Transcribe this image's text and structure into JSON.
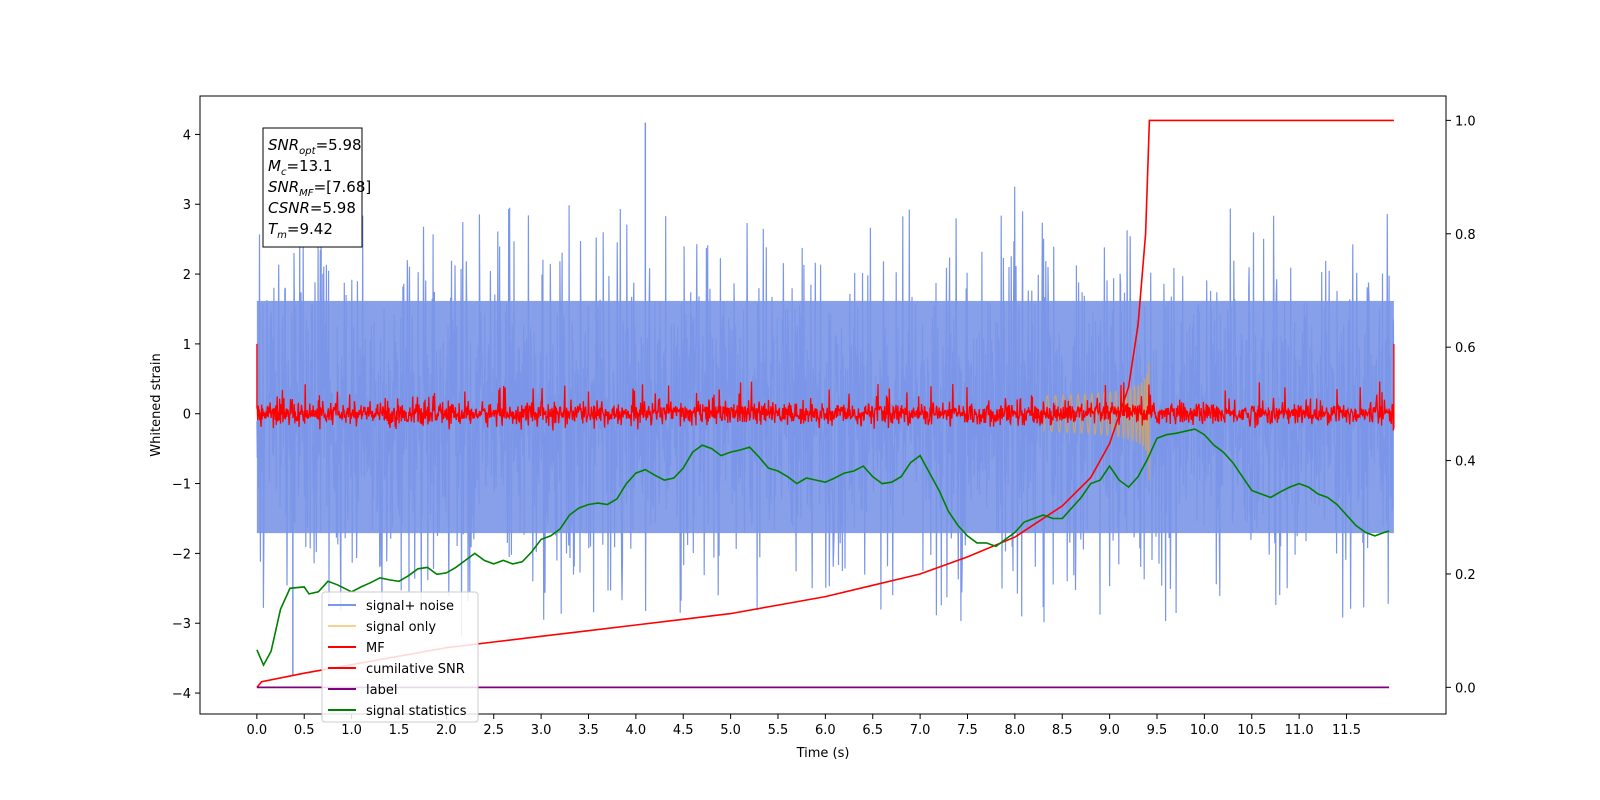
{
  "chart_data": {
    "type": "line",
    "xlabel": "Time (s)",
    "ylabel": "Whitened strain",
    "xlim": [
      -0.6,
      12.55
    ],
    "ylim": [
      -4.3,
      4.55
    ],
    "y2lim": [
      -0.047,
      1.043
    ],
    "x_ticks": [
      "0.0",
      "0.5",
      "1.0",
      "1.5",
      "2.0",
      "2.5",
      "3.0",
      "3.5",
      "4.0",
      "4.5",
      "5.0",
      "5.5",
      "6.0",
      "6.5",
      "7.0",
      "7.5",
      "8.0",
      "8.5",
      "9.0",
      "9.5",
      "10.0",
      "10.5",
      "11.0",
      "11.5"
    ],
    "y_ticks": [
      "4",
      "3",
      "2",
      "1",
      "0",
      "−1",
      "−2",
      "−3",
      "−4"
    ],
    "y2_ticks": [
      "1.0",
      "0.8",
      "0.6",
      "0.4",
      "0.2",
      "0.0"
    ],
    "grid": false,
    "legend_position": "lower-left",
    "annotation": {
      "lines": [
        {
          "sym": "SNR",
          "sub": "opt",
          "value": "=5.98"
        },
        {
          "sym": "M",
          "sub": "c",
          "value": "=13.1"
        },
        {
          "sym": "SNR",
          "sub": "MF",
          "value": "=[7.68]"
        },
        {
          "sym": "CSNR",
          "sub": "",
          "value": "=5.98"
        },
        {
          "sym": "T",
          "sub": "m",
          "value": "=9.42"
        }
      ]
    },
    "series": [
      {
        "name": "signal+ noise",
        "color": "#7b96e8",
        "axis": "left",
        "style": "noise",
        "x_range": [
          0.0,
          12.0
        ],
        "upper_envelope": 1.7,
        "lower_envelope": -1.8,
        "peak_max": 4.17,
        "peak_min": -3.75
      },
      {
        "name": "signal only",
        "color": "#f7d28a",
        "axis": "left",
        "style": "chirp",
        "chirp_start": 8.3,
        "merger_time": 9.42,
        "peak_amplitude": 0.95
      },
      {
        "name": "MF",
        "color": "#ff0000",
        "axis": "left",
        "style": "noise",
        "x_range": [
          0.0,
          12.0
        ],
        "band": 0.18,
        "spike_max": 0.47,
        "spike_min": -0.2,
        "edge_value": 1.0
      },
      {
        "name": "cumilative SNR",
        "color": "#ff0000",
        "axis": "right",
        "x": [
          0.0,
          0.05,
          0.5,
          1.0,
          1.5,
          2.0,
          2.5,
          3.0,
          3.5,
          4.0,
          4.5,
          5.0,
          5.5,
          6.0,
          6.5,
          7.0,
          7.5,
          8.0,
          8.5,
          8.8,
          9.0,
          9.2,
          9.3,
          9.38,
          9.42,
          12.0
        ],
        "values": [
          0.0,
          0.01,
          0.025,
          0.04,
          0.055,
          0.07,
          0.08,
          0.09,
          0.1,
          0.11,
          0.12,
          0.13,
          0.145,
          0.16,
          0.18,
          0.2,
          0.23,
          0.265,
          0.32,
          0.37,
          0.43,
          0.53,
          0.64,
          0.8,
          1.0,
          1.0
        ]
      },
      {
        "name": "label",
        "color": "#800080",
        "axis": "right",
        "x": [
          0.0,
          11.95
        ],
        "values": [
          0.0,
          0.0
        ]
      },
      {
        "name": "signal statistics",
        "color": "#008000",
        "axis": "left",
        "x": [
          0.0,
          0.07,
          0.15,
          0.25,
          0.35,
          0.5,
          0.55,
          0.65,
          0.75,
          0.85,
          1.0,
          1.1,
          1.2,
          1.3,
          1.4,
          1.5,
          1.6,
          1.7,
          1.8,
          1.9,
          2.0,
          2.1,
          2.2,
          2.3,
          2.4,
          2.5,
          2.6,
          2.7,
          2.8,
          2.9,
          3.0,
          3.1,
          3.2,
          3.3,
          3.4,
          3.5,
          3.6,
          3.7,
          3.8,
          3.9,
          4.0,
          4.1,
          4.2,
          4.3,
          4.4,
          4.5,
          4.6,
          4.7,
          4.8,
          4.9,
          5.0,
          5.1,
          5.2,
          5.3,
          5.4,
          5.5,
          5.6,
          5.7,
          5.8,
          5.9,
          6.0,
          6.1,
          6.2,
          6.3,
          6.4,
          6.5,
          6.6,
          6.7,
          6.8,
          6.9,
          7.0,
          7.1,
          7.2,
          7.3,
          7.4,
          7.5,
          7.6,
          7.7,
          7.8,
          7.9,
          8.0,
          8.1,
          8.2,
          8.3,
          8.4,
          8.5,
          8.6,
          8.7,
          8.8,
          8.9,
          9.0,
          9.1,
          9.2,
          9.3,
          9.4,
          9.5,
          9.6,
          9.7,
          9.8,
          9.9,
          10.0,
          10.1,
          10.2,
          10.3,
          10.4,
          10.5,
          10.6,
          10.7,
          10.8,
          10.9,
          11.0,
          11.1,
          11.2,
          11.3,
          11.4,
          11.5,
          11.6,
          11.7,
          11.8,
          11.9,
          11.95
        ],
        "values": [
          -3.38,
          -3.6,
          -3.4,
          -2.8,
          -2.5,
          -2.48,
          -2.58,
          -2.55,
          -2.4,
          -2.45,
          -2.55,
          -2.48,
          -2.42,
          -2.35,
          -2.38,
          -2.4,
          -2.32,
          -2.22,
          -2.2,
          -2.3,
          -2.28,
          -2.2,
          -2.1,
          -2.0,
          -2.1,
          -2.15,
          -2.1,
          -2.15,
          -2.12,
          -1.98,
          -1.8,
          -1.75,
          -1.65,
          -1.45,
          -1.35,
          -1.3,
          -1.28,
          -1.3,
          -1.22,
          -1.0,
          -0.85,
          -0.8,
          -0.88,
          -0.95,
          -0.92,
          -0.78,
          -0.55,
          -0.45,
          -0.5,
          -0.6,
          -0.55,
          -0.52,
          -0.48,
          -0.62,
          -0.78,
          -0.82,
          -0.9,
          -1.0,
          -0.92,
          -0.95,
          -0.98,
          -0.92,
          -0.85,
          -0.82,
          -0.75,
          -0.9,
          -1.0,
          -0.98,
          -0.9,
          -0.7,
          -0.6,
          -0.85,
          -1.1,
          -1.4,
          -1.6,
          -1.75,
          -1.85,
          -1.85,
          -1.9,
          -1.8,
          -1.7,
          -1.55,
          -1.5,
          -1.45,
          -1.5,
          -1.5,
          -1.35,
          -1.2,
          -1.0,
          -0.95,
          -0.75,
          -0.95,
          -1.05,
          -0.9,
          -0.65,
          -0.35,
          -0.3,
          -0.28,
          -0.25,
          -0.22,
          -0.3,
          -0.45,
          -0.55,
          -0.7,
          -0.9,
          -1.1,
          -1.15,
          -1.2,
          -1.12,
          -1.05,
          -1.0,
          -1.05,
          -1.15,
          -1.2,
          -1.3,
          -1.45,
          -1.6,
          -1.7,
          -1.75,
          -1.7,
          -1.68
        ]
      }
    ]
  }
}
